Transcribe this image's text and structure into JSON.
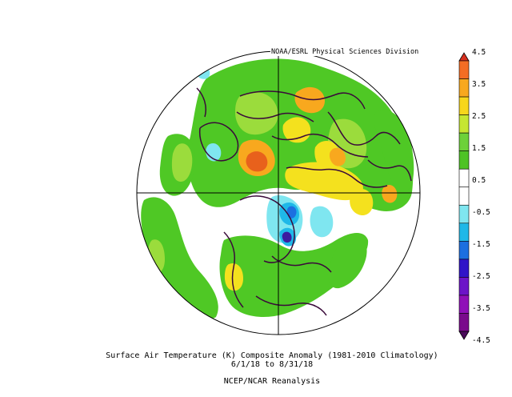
{
  "credit": "NOAA/ESRL Physical Sciences Division",
  "title": "Surface Air Temperature (K) Composite Anomaly (1981-2010 Climatology)",
  "dates": "6/1/18  to 8/31/18",
  "source": "NCEP/NCAR Reanalysis",
  "projection": "north-polar-stereographic",
  "colorbar": {
    "levels": [
      "4.5",
      "3.5",
      "2.5",
      "1.5",
      "0.5",
      "-0.5",
      "-1.5",
      "-2.5",
      "-3.5",
      "-4.5"
    ],
    "colors": [
      "#d7301f",
      "#f46d24",
      "#f8a81e",
      "#f7d61c",
      "#c6e631",
      "#6dd13a",
      "#4ec325",
      "#ffffff",
      "#ffffff",
      "#7fe6f0",
      "#1fb8e8",
      "#1c6fe0",
      "#3014c8",
      "#6c14c8",
      "#9010b8",
      "#7a0a8c",
      "#4a0a5a"
    ]
  },
  "anomaly_colors": {
    "light_warm": "#9bdc3c",
    "warm": "#4fc825",
    "warmer": "#f4e11e",
    "hot": "#f8a81e",
    "very_hot": "#e8611c",
    "cool": "#7fe6f0",
    "cold": "#1fb8e8",
    "colder": "#1c6fe0",
    "coldest": "#3c1ca0"
  }
}
